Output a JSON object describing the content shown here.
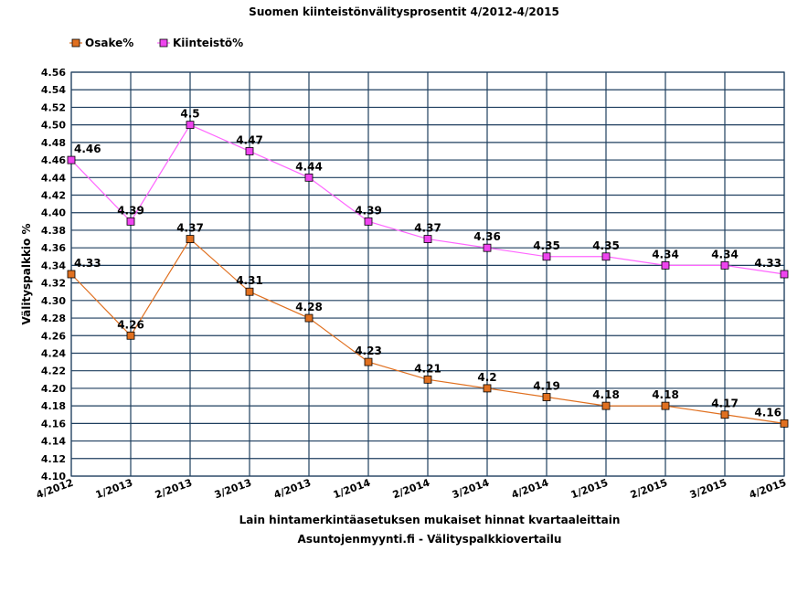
{
  "chart_data": {
    "type": "line",
    "title": "Suomen kiinteistönvälitysprosentit 4/2012-4/2015",
    "xlabel": "Lain hintamerkintäasetuksen mukaiset hinnat kvartaaleittain",
    "source": "Asuntojenmyynti.fi - Välityspalkkiovertailu",
    "ylabel": "Välityspalkkio %",
    "categories": [
      "4/2012",
      "1/2013",
      "2/2013",
      "3/2013",
      "4/2013",
      "1/2014",
      "2/2014",
      "3/2014",
      "4/2014",
      "1/2015",
      "2/2015",
      "3/2015",
      "4/2015"
    ],
    "ylim": [
      4.1,
      4.56
    ],
    "ytick_step": 0.02,
    "ytick_labels": [
      "4.10",
      "4.12",
      "4.14",
      "4.16",
      "4.18",
      "4.20",
      "4.22",
      "4.24",
      "4.26",
      "4.28",
      "4.30",
      "4.32",
      "4.34",
      "4.36",
      "4.38",
      "4.40",
      "4.42",
      "4.44",
      "4.46",
      "4.48",
      "4.50",
      "4.52",
      "4.54",
      "4.56"
    ],
    "grid": true,
    "legend_position": "top-left",
    "series": [
      {
        "name": "Osake%",
        "color": "#e07020",
        "marker_color": "#e07020",
        "values": [
          4.33,
          4.26,
          4.37,
          4.31,
          4.28,
          4.23,
          4.21,
          4.2,
          4.19,
          4.18,
          4.18,
          4.17,
          4.16
        ],
        "labels": [
          "4.33",
          "4.26",
          "4.37",
          "4.31",
          "4.28",
          "4.23",
          "4.21",
          "4.2",
          "4.19",
          "4.18",
          "4.18",
          "4.17",
          "4.16"
        ]
      },
      {
        "name": "Kiinteistö%",
        "color": "#ff66ff",
        "marker_color": "#ee44ee",
        "values": [
          4.46,
          4.39,
          4.5,
          4.47,
          4.44,
          4.39,
          4.37,
          4.36,
          4.35,
          4.35,
          4.34,
          4.34,
          4.33
        ],
        "labels": [
          "4.46",
          "4.39",
          "4.5",
          "4.47",
          "4.44",
          "4.39",
          "4.37",
          "4.36",
          "4.35",
          "4.35",
          "4.34",
          "4.34",
          "4.33"
        ]
      }
    ],
    "grid_color": "#1f3f5f"
  }
}
